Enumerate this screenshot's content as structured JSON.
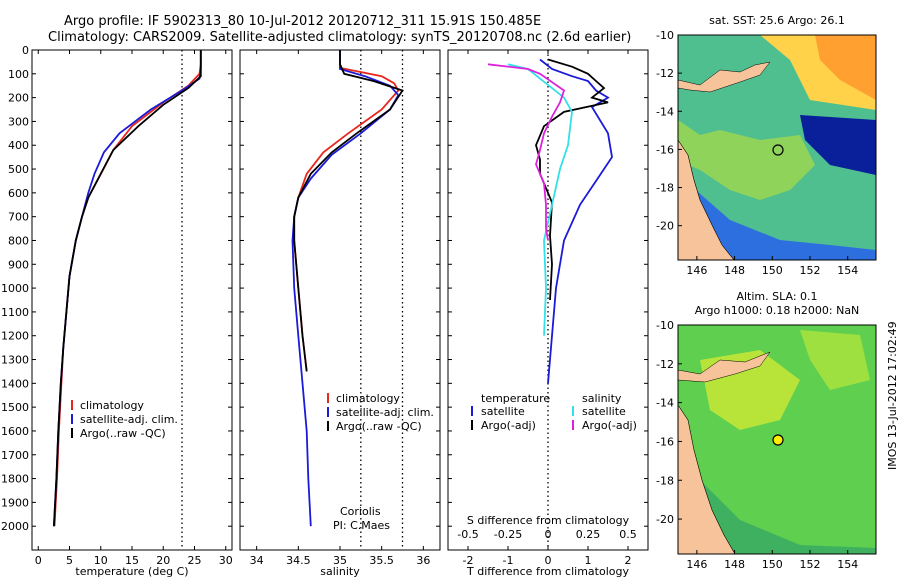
{
  "header": {
    "line1": "Argo profile: IF 5902313_80 10-Jul-2012 20120712_311 15.91S 150.485E",
    "line2": "Climatology: CARS2009. Satellite-adjusted climatology: synTS_20120708.nc (2.6d earlier)"
  },
  "stamp": "IMOS 13-Jul-2012 17:02:49",
  "colors": {
    "climatology": "#e8271d",
    "satellite": "#1a1ad9",
    "argo": "#000000",
    "sal_satellite": "#33e0e8",
    "sal_argo": "#dd22dd",
    "land": "#f7c39a"
  },
  "chart_data": [
    {
      "type": "line",
      "name": "temperature",
      "xlabel": "temperature (deg C)",
      "xlim": [
        -1,
        31
      ],
      "ylim": [
        2100,
        0
      ],
      "xticks": [
        0,
        5,
        10,
        15,
        20,
        25,
        30
      ],
      "yticks": [
        0,
        100,
        200,
        300,
        400,
        500,
        600,
        700,
        800,
        900,
        1000,
        1100,
        1200,
        1300,
        1400,
        1500,
        1600,
        1700,
        1800,
        1900,
        2000
      ],
      "vline": 23,
      "legend": [
        "climatology",
        "satellite-adj. clim.",
        "Argo(..raw -QC)"
      ],
      "series": [
        {
          "name": "climatology",
          "color": "climatology",
          "points": [
            [
              26,
              0
            ],
            [
              26,
              60
            ],
            [
              25.8,
              100
            ],
            [
              24,
              150
            ],
            [
              20,
              220
            ],
            [
              15,
              320
            ],
            [
              12,
              420
            ],
            [
              10,
              520
            ],
            [
              8,
              620
            ],
            [
              7,
              700
            ],
            [
              6,
              800
            ],
            [
              5,
              950
            ],
            [
              4.5,
              1100
            ],
            [
              4,
              1250
            ],
            [
              3.7,
              1400
            ],
            [
              3.3,
              1600
            ],
            [
              3,
              1800
            ],
            [
              2.6,
              2000
            ]
          ]
        },
        {
          "name": "satellite",
          "color": "satellite",
          "points": [
            [
              26,
              0
            ],
            [
              26,
              80
            ],
            [
              25.8,
              120
            ],
            [
              23,
              170
            ],
            [
              18,
              250
            ],
            [
              13,
              350
            ],
            [
              10.5,
              430
            ],
            [
              9,
              520
            ],
            [
              8,
              600
            ],
            [
              7,
              700
            ],
            [
              6,
              800
            ],
            [
              5,
              950
            ],
            [
              4.5,
              1100
            ],
            [
              4,
              1250
            ],
            [
              3.6,
              1400
            ],
            [
              3.2,
              1600
            ],
            [
              2.9,
              1800
            ],
            [
              2.5,
              2000
            ]
          ]
        },
        {
          "name": "argo",
          "color": "argo",
          "points": [
            [
              26,
              0
            ],
            [
              26,
              80
            ],
            [
              26,
              110
            ],
            [
              24,
              160
            ],
            [
              20,
              230
            ],
            [
              16,
              320
            ],
            [
              12,
              420
            ],
            [
              10,
              520
            ],
            [
              8,
              620
            ],
            [
              7,
              700
            ],
            [
              6,
              800
            ],
            [
              5,
              950
            ],
            [
              4.5,
              1100
            ],
            [
              4,
              1250
            ],
            [
              3.6,
              1400
            ],
            [
              3.2,
              1600
            ],
            [
              2.9,
              1800
            ],
            [
              2.5,
              2000
            ]
          ]
        }
      ]
    },
    {
      "type": "line",
      "name": "salinity",
      "xlabel": "salinity",
      "xlim": [
        33.8,
        36.2
      ],
      "ylim": [
        2100,
        0
      ],
      "xticks": [
        34,
        34.5,
        35,
        35.5,
        36
      ],
      "vlines": [
        35.25,
        35.75
      ],
      "legend": [
        "climatology",
        "satellite-adj. clim.",
        "Argo(..raw -QC)"
      ],
      "note": [
        "Coriolis",
        "PI: C.Maes"
      ],
      "series": [
        {
          "name": "climatology",
          "color": "climatology",
          "points": [
            [
              35,
              60
            ],
            [
              35,
              75
            ],
            [
              35.5,
              110
            ],
            [
              35.65,
              140
            ],
            [
              35.7,
              170
            ],
            [
              35.5,
              250
            ],
            [
              35.1,
              350
            ],
            [
              34.8,
              430
            ],
            [
              34.6,
              520
            ],
            [
              34.5,
              620
            ],
            [
              34.45,
              700
            ],
            [
              34.45,
              800
            ],
            [
              34.5,
              1000
            ],
            [
              34.55,
              1200
            ],
            [
              34.6,
              1350
            ]
          ]
        },
        {
          "name": "satellite",
          "color": "satellite",
          "points": [
            [
              35,
              0
            ],
            [
              35,
              80
            ],
            [
              35.3,
              110
            ],
            [
              35.6,
              150
            ],
            [
              35.7,
              190
            ],
            [
              35.6,
              250
            ],
            [
              35.25,
              350
            ],
            [
              34.9,
              440
            ],
            [
              34.65,
              540
            ],
            [
              34.5,
              620
            ],
            [
              34.45,
              700
            ],
            [
              34.43,
              800
            ],
            [
              34.45,
              1000
            ],
            [
              34.5,
              1200
            ],
            [
              34.55,
              1400
            ],
            [
              34.6,
              1600
            ],
            [
              34.62,
              1800
            ],
            [
              34.65,
              2000
            ]
          ]
        },
        {
          "name": "argo",
          "color": "argo",
          "points": [
            [
              35,
              0
            ],
            [
              35,
              60
            ],
            [
              35.05,
              100
            ],
            [
              35.4,
              130
            ],
            [
              35.75,
              170
            ],
            [
              35.6,
              250
            ],
            [
              35.2,
              350
            ],
            [
              34.9,
              430
            ],
            [
              34.65,
              520
            ],
            [
              34.5,
              620
            ],
            [
              34.45,
              700
            ],
            [
              34.45,
              800
            ],
            [
              34.5,
              1000
            ],
            [
              34.55,
              1200
            ],
            [
              34.6,
              1350
            ]
          ]
        }
      ]
    },
    {
      "type": "line",
      "name": "differences",
      "xlabel": "T difference from climatology",
      "xlabel2": "S difference from climatology",
      "xlim": [
        -2.5,
        2.5
      ],
      "ylim": [
        2100,
        0
      ],
      "xticks": [
        -2,
        -1,
        0,
        1,
        2
      ],
      "xticklabels2": [
        "-0.5",
        "-0.25",
        "0",
        "0.25",
        "0.5"
      ],
      "vline": 0,
      "legend_t": [
        "temperature",
        "satellite",
        "Argo(-adj)"
      ],
      "legend_s": [
        "salinity",
        "satellite",
        "Argo(-adj)"
      ],
      "series": [
        {
          "name": "T satellite",
          "color": "satellite",
          "points": [
            [
              -0.2,
              40
            ],
            [
              0.1,
              80
            ],
            [
              0.6,
              110
            ],
            [
              1.0,
              130
            ],
            [
              1.2,
              170
            ],
            [
              1.5,
              200
            ],
            [
              1.1,
              240
            ],
            [
              1.5,
              350
            ],
            [
              1.6,
              450
            ],
            [
              1.2,
              550
            ],
            [
              0.8,
              650
            ],
            [
              0.4,
              800
            ],
            [
              0.2,
              1000
            ],
            [
              0.1,
              1200
            ],
            [
              0,
              1400
            ]
          ]
        },
        {
          "name": "T argo",
          "color": "argo",
          "points": [
            [
              0,
              40
            ],
            [
              0.6,
              70
            ],
            [
              1.0,
              100
            ],
            [
              1.2,
              130
            ],
            [
              1.4,
              160
            ],
            [
              1.1,
              200
            ],
            [
              1.5,
              220
            ],
            [
              0.4,
              260
            ],
            [
              -0.1,
              320
            ],
            [
              -0.3,
              400
            ],
            [
              -0.2,
              460
            ],
            [
              -0.2,
              520
            ],
            [
              0.1,
              640
            ],
            [
              0.05,
              780
            ],
            [
              0.1,
              900
            ],
            [
              0.05,
              1050
            ]
          ]
        },
        {
          "name": "S satellite",
          "color": "sal_satellite",
          "points": [
            [
              -1.0,
              60
            ],
            [
              -0.5,
              80
            ],
            [
              -0.2,
              120
            ],
            [
              0.4,
              200
            ],
            [
              0.6,
              260
            ],
            [
              0.5,
              400
            ],
            [
              0.3,
              500
            ],
            [
              0.1,
              650
            ],
            [
              -0.1,
              800
            ],
            [
              -0.05,
              1000
            ],
            [
              -0.1,
              1200
            ]
          ]
        },
        {
          "name": "S argo",
          "color": "sal_argo",
          "points": [
            [
              -1.5,
              60
            ],
            [
              -0.5,
              80
            ],
            [
              -0.2,
              100
            ],
            [
              0.4,
              170
            ],
            [
              0.3,
              220
            ],
            [
              0.1,
              280
            ],
            [
              -0.1,
              350
            ],
            [
              -0.2,
              420
            ],
            [
              -0.3,
              480
            ],
            [
              -0.1,
              560
            ],
            [
              -0.05,
              650
            ],
            [
              -0.05,
              750
            ],
            [
              0,
              800
            ]
          ]
        }
      ]
    }
  ],
  "maps": [
    {
      "title": "sat. SST: 25.6  Argo: 26.1",
      "title2": "",
      "xticks": [
        146,
        148,
        150,
        152,
        154
      ],
      "yticks": [
        -10,
        -12,
        -14,
        -16,
        -18,
        -20
      ],
      "xlim": [
        145,
        155.5
      ],
      "ylim": [
        -21.8,
        -10
      ],
      "argo_point": [
        150.5,
        -15.9
      ]
    },
    {
      "title": "Altim. SLA: 0.1",
      "title2": "Argo h1000: 0.18 h2000: NaN",
      "xticks": [
        146,
        148,
        150,
        152,
        154
      ],
      "yticks": [
        -10,
        -12,
        -14,
        -16,
        -18,
        -20
      ],
      "xlim": [
        145,
        155.5
      ],
      "ylim": [
        -21.8,
        -10
      ],
      "argo_point": [
        150.5,
        -15.9
      ]
    }
  ]
}
